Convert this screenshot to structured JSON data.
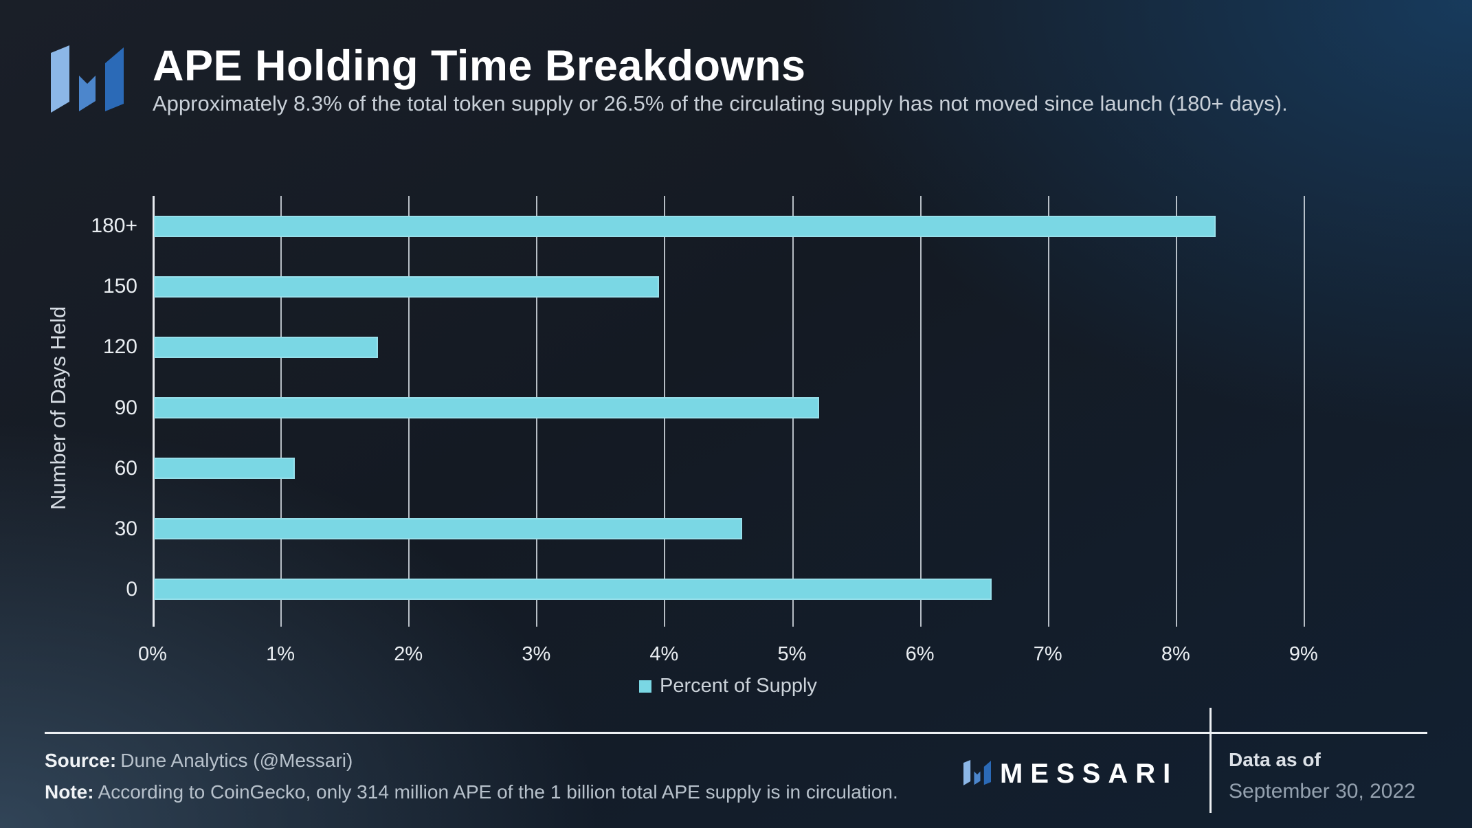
{
  "header": {
    "title": "APE Holding Time Breakdowns",
    "subtitle": "Approximately 8.3% of the total token supply or 26.5% of the circulating supply has not moved since launch (180+ days)."
  },
  "chart_data": {
    "type": "bar",
    "orientation": "horizontal",
    "title": "APE Holding Time Breakdowns",
    "categories": [
      "180+",
      "150",
      "120",
      "90",
      "60",
      "30",
      "0"
    ],
    "values": [
      8.3,
      3.95,
      1.75,
      5.2,
      1.1,
      4.6,
      6.55
    ],
    "series_name": "Percent of Supply",
    "xlabel": "Percent of Supply",
    "ylabel": "Number of Days Held",
    "x_ticks": [
      "0%",
      "1%",
      "2%",
      "3%",
      "4%",
      "5%",
      "6%",
      "7%",
      "8%",
      "9%"
    ],
    "xlim": [
      0,
      10
    ],
    "grid": true,
    "legend_position": "bottom"
  },
  "footer": {
    "source_label": "Source:",
    "source_text": "Dune Analytics (@Messari)",
    "note_label": "Note:",
    "note_text": "According to CoinGecko, only 314 million APE of the 1 billion total APE supply is in circulation.",
    "brand": "MESSARI",
    "data_as_of_label": "Data as of",
    "data_as_of_date": "September 30, 2022"
  },
  "colors": {
    "bar_cyan": "#7ad7e4",
    "gridline": "#e6ecf2",
    "logo_light_blue": "#8cb7e7",
    "logo_mid_blue": "#4c86cc",
    "logo_dark_blue": "#2b6ab7",
    "background_navy": "#122031"
  }
}
